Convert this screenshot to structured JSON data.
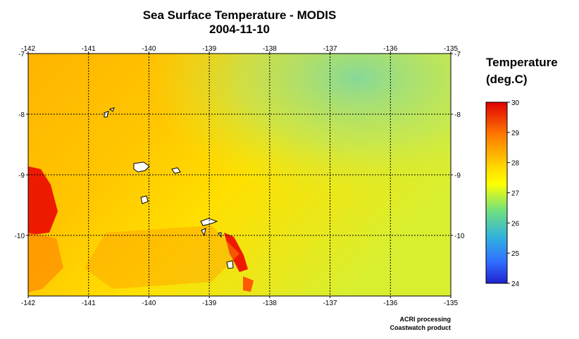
{
  "header": {
    "title": "Sea Surface Temperature - MODIS",
    "date": "2004-11-10"
  },
  "map": {
    "lon_range": [
      -142,
      -135
    ],
    "lat_range": [
      -11,
      -7
    ],
    "lon_ticks": [
      "-142",
      "-141",
      "-140",
      "-139",
      "-138",
      "-137",
      "-136",
      "-135"
    ],
    "lat_ticks": [
      "-7",
      "-8",
      "-9",
      "-10"
    ],
    "grid": true
  },
  "legend": {
    "title_line1": "Temperature",
    "title_line2": "(deg.C)",
    "ticks": [
      "30",
      "29",
      "28",
      "27",
      "26",
      "25",
      "24"
    ],
    "range": [
      24,
      30
    ],
    "colors": [
      "#e00000",
      "#ff7a00",
      "#ffd400",
      "#ffff00",
      "#30d0a0",
      "#30a0ff",
      "#2020d0"
    ]
  },
  "footer": {
    "line1": "ACRI processing",
    "line2": "Coastwatch product"
  }
}
